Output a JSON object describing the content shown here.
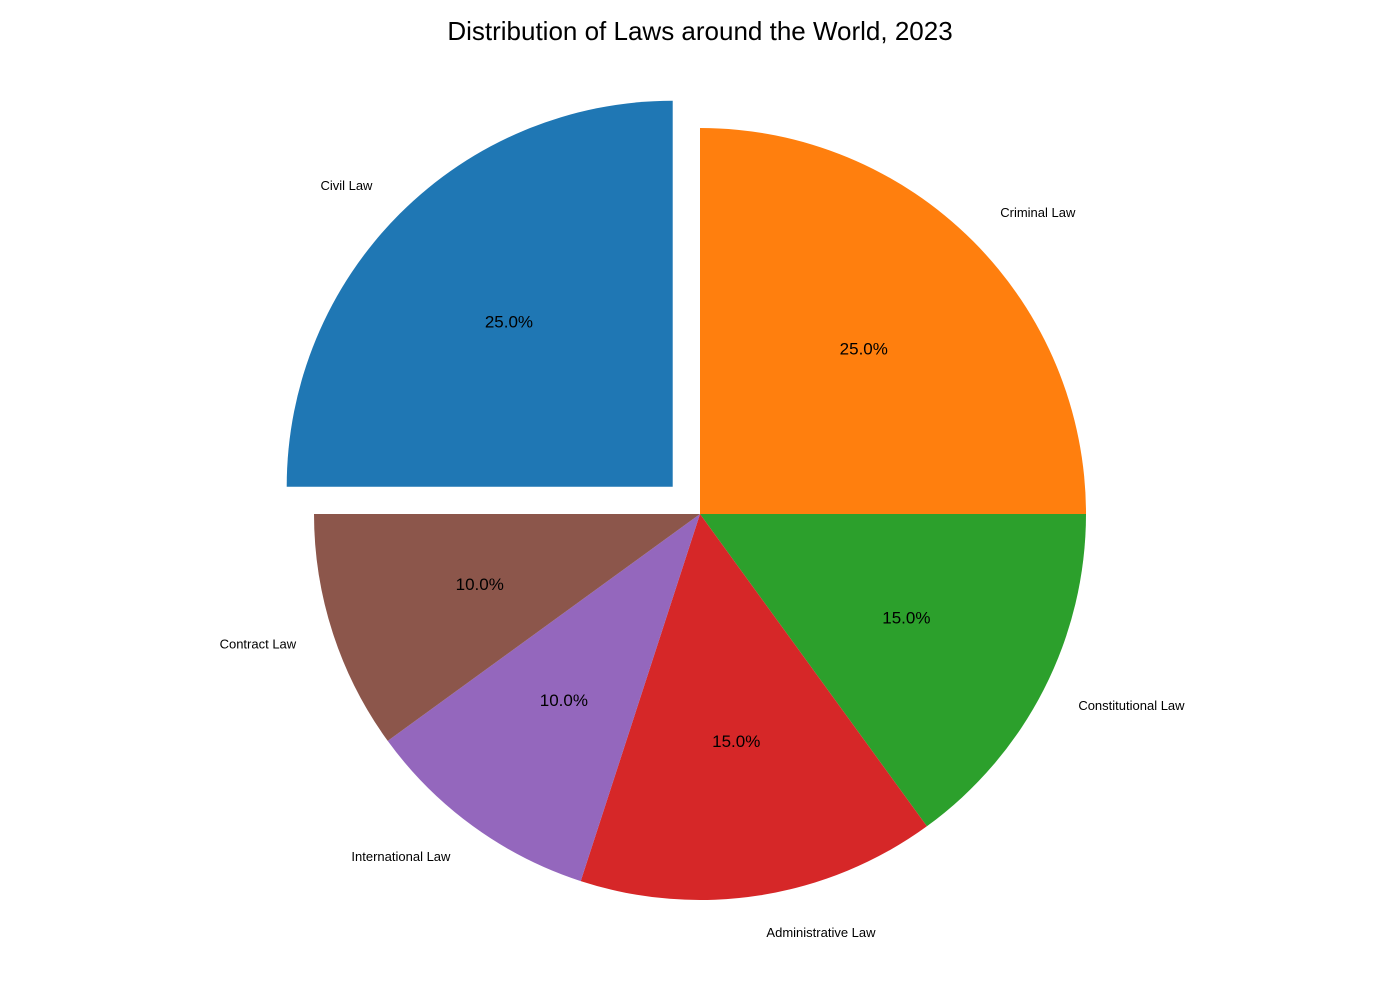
{
  "chart_data": {
    "type": "pie",
    "title": "Distribution of Laws around the World, 2023",
    "start_angle_deg": 90,
    "direction": "clockwise",
    "slices": [
      {
        "label": "Criminal Law",
        "value": 25.0,
        "pct_text": "25.0%",
        "color": "#ff7f0e",
        "explode": 0
      },
      {
        "label": "Constitutional Law",
        "value": 15.0,
        "pct_text": "15.0%",
        "color": "#2ca02c",
        "explode": 0
      },
      {
        "label": "Administrative Law",
        "value": 15.0,
        "pct_text": "15.0%",
        "color": "#d62728",
        "explode": 0
      },
      {
        "label": "International Law",
        "value": 10.0,
        "pct_text": "10.0%",
        "color": "#9467bd",
        "explode": 0
      },
      {
        "label": "Contract Law",
        "value": 10.0,
        "pct_text": "10.0%",
        "color": "#8c564b",
        "explode": 0
      },
      {
        "label": "Civil Law",
        "value": 25.0,
        "pct_text": "25.0%",
        "color": "#1f77b4",
        "explode": 0.1
      }
    ]
  }
}
